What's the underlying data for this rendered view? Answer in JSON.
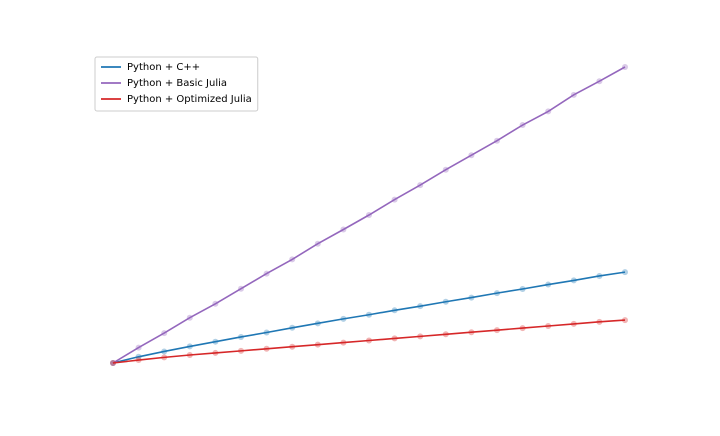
{
  "chart_data": {
    "type": "line",
    "x": [
      0,
      5,
      10,
      15,
      20,
      25,
      30,
      35,
      40,
      45,
      50,
      55,
      60,
      65,
      70,
      75,
      80,
      85,
      90,
      95,
      100
    ],
    "series": [
      {
        "name": "Python + C++",
        "color": "#1f77b4",
        "values": [
          0,
          2.1,
          3.9,
          5.6,
          7.2,
          8.8,
          10.3,
          11.9,
          13.4,
          14.9,
          16.3,
          17.8,
          19.2,
          20.7,
          22.1,
          23.6,
          25.0,
          26.5,
          27.9,
          29.4,
          30.7
        ]
      },
      {
        "name": "Python + Basic Julia",
        "color": "#9467bd",
        "values": [
          0,
          5.2,
          10.1,
          15.3,
          20.0,
          25.1,
          30.2,
          35.0,
          40.3,
          45.1,
          50.0,
          55.2,
          60.1,
          65.3,
          70.2,
          75.1,
          80.4,
          85.0,
          90.6,
          95.2,
          100
        ]
      },
      {
        "name": "Python + Optimized Julia",
        "color": "#d62728",
        "values": [
          0,
          1.0,
          1.9,
          2.7,
          3.4,
          4.1,
          4.8,
          5.5,
          6.2,
          6.9,
          7.6,
          8.3,
          9.0,
          9.7,
          10.4,
          11.1,
          11.8,
          12.5,
          13.2,
          13.9,
          14.5
        ]
      }
    ],
    "xlim": [
      0,
      100
    ],
    "ylim": [
      0,
      100
    ],
    "legend": "upper left"
  }
}
